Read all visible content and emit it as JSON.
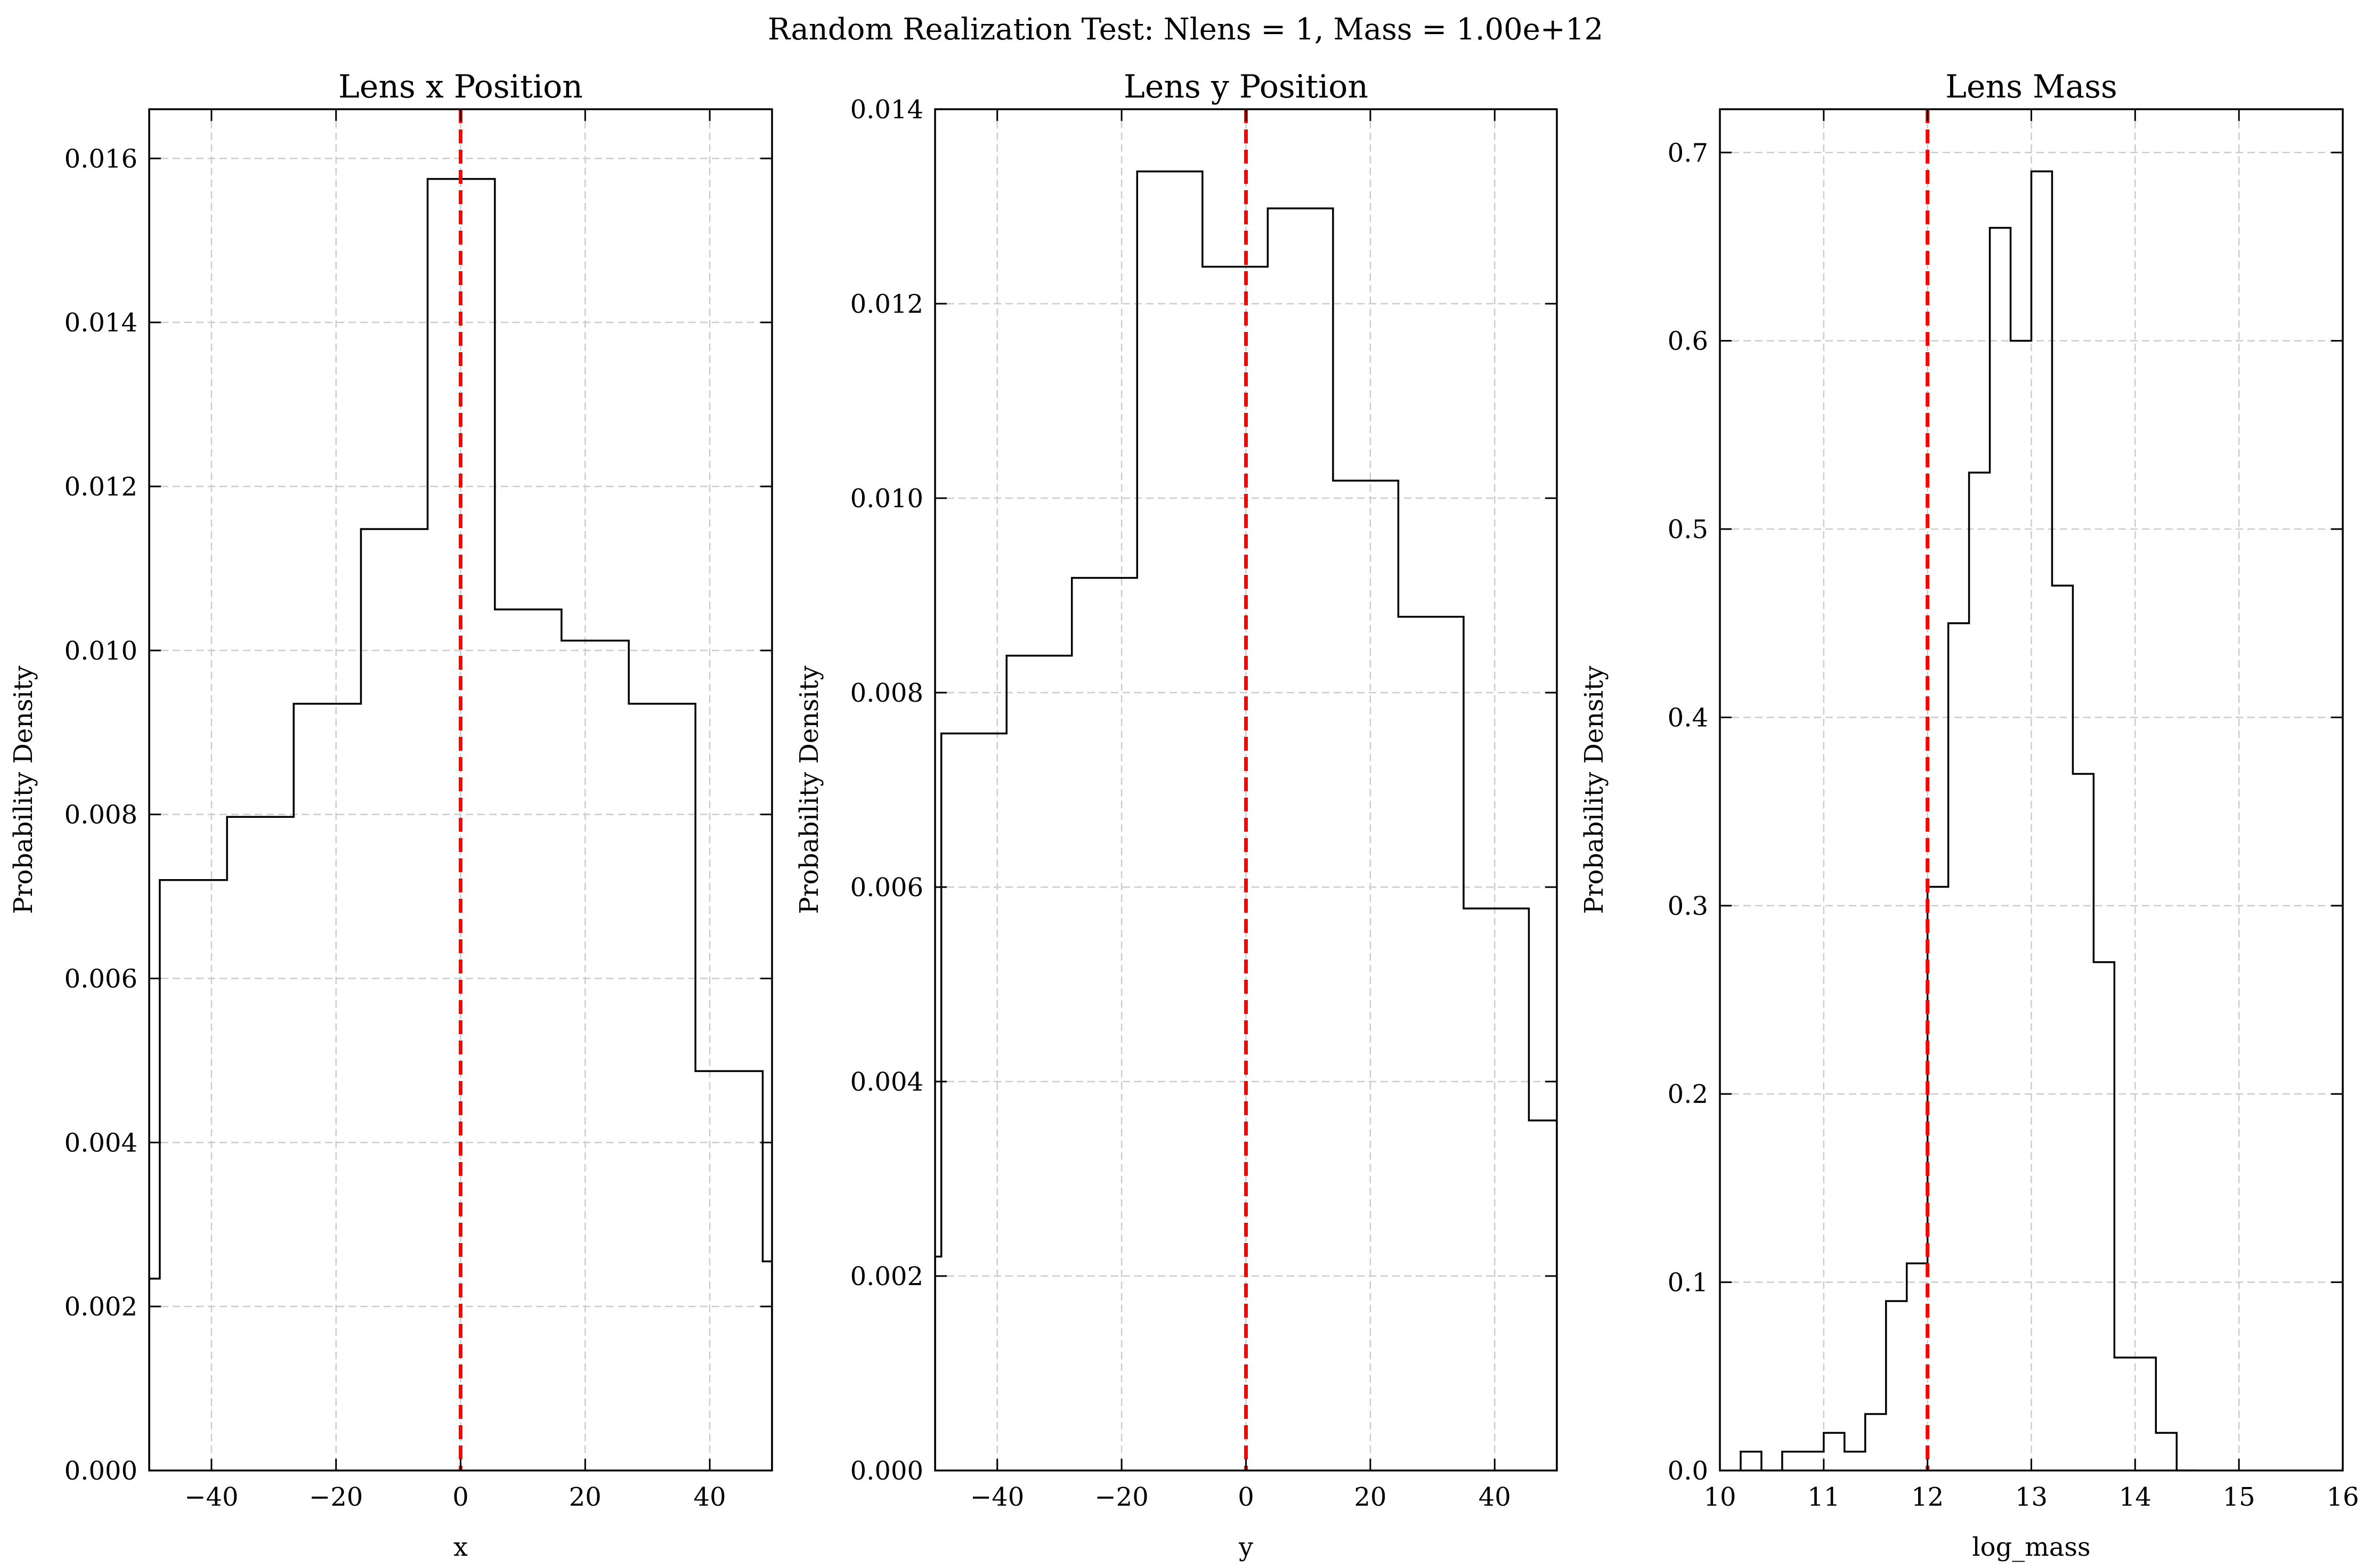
{
  "figure": {
    "suptitle": "Random Realization Test: Nlens = 1, Mass = 1.00e+12"
  },
  "style": {
    "hist_color": "#000000",
    "marker_color": "#ff0000",
    "grid_color": "#cccccc"
  },
  "chart_data": [
    {
      "type": "histogram",
      "title": "Lens x Position",
      "xlabel": "x",
      "ylabel": "Probability Density",
      "xlim": [
        -50,
        50
      ],
      "ylim": [
        0,
        0.0166
      ],
      "xticks": [
        -40,
        -20,
        0,
        20,
        40
      ],
      "xtick_labels": [
        "−40",
        "−20",
        "0",
        "20",
        "40"
      ],
      "yticks": [
        0,
        0.002,
        0.004,
        0.006,
        0.008,
        0.01,
        0.012,
        0.014,
        0.016
      ],
      "ytick_labels": [
        "0.000",
        "0.002",
        "0.004",
        "0.006",
        "0.008",
        "0.010",
        "0.012",
        "0.014",
        "0.016"
      ],
      "grid": true,
      "bin_edges": [
        -50,
        -48.3,
        -37.5,
        -26.8,
        -16.0,
        -5.3,
        5.5,
        16.2,
        27.0,
        37.7,
        48.5,
        50
      ],
      "values": [
        0.00234,
        0.0072,
        0.00797,
        0.00935,
        0.01148,
        0.01575,
        0.0105,
        0.01012,
        0.00935,
        0.00487,
        0.00255
      ],
      "marker_line": {
        "x": 0,
        "style": "dashed"
      }
    },
    {
      "type": "histogram",
      "title": "Lens y Position",
      "xlabel": "y",
      "ylabel": "Probability Density",
      "xlim": [
        -50,
        50
      ],
      "ylim": [
        0,
        0.014
      ],
      "xticks": [
        -40,
        -20,
        0,
        20,
        40
      ],
      "xtick_labels": [
        "−40",
        "−20",
        "0",
        "20",
        "40"
      ],
      "yticks": [
        0,
        0.002,
        0.004,
        0.006,
        0.008,
        0.01,
        0.012,
        0.014
      ],
      "ytick_labels": [
        "0.000",
        "0.002",
        "0.004",
        "0.006",
        "0.008",
        "0.010",
        "0.012",
        "0.014"
      ],
      "grid": true,
      "bin_edges": [
        -50,
        -49.0,
        -38.5,
        -28.0,
        -17.5,
        -7.0,
        3.5,
        14.0,
        24.5,
        35.0,
        45.5,
        50
      ],
      "values": [
        0.0022,
        0.00758,
        0.00838,
        0.00918,
        0.01336,
        0.01238,
        0.01298,
        0.01018,
        0.00878,
        0.00578,
        0.0036
      ],
      "marker_line": {
        "x": 0,
        "style": "dashed"
      }
    },
    {
      "type": "histogram",
      "title": "Lens Mass",
      "xlabel": "log_mass",
      "ylabel": "Probability Density",
      "xlim": [
        10,
        16
      ],
      "ylim": [
        0,
        0.723
      ],
      "xticks": [
        10,
        11,
        12,
        13,
        14,
        15,
        16
      ],
      "xtick_labels": [
        "10",
        "11",
        "12",
        "13",
        "14",
        "15",
        "16"
      ],
      "yticks": [
        0,
        0.1,
        0.2,
        0.3,
        0.4,
        0.5,
        0.6,
        0.7
      ],
      "ytick_labels": [
        "0.0",
        "0.1",
        "0.2",
        "0.3",
        "0.4",
        "0.5",
        "0.6",
        "0.7"
      ],
      "grid": true,
      "bin_edges": [
        10.2,
        10.4,
        10.6,
        10.8,
        11.0,
        11.2,
        11.4,
        11.6,
        11.8,
        12.0,
        12.2,
        12.4,
        12.6,
        12.8,
        13.0,
        13.2,
        13.4,
        13.6,
        13.8,
        14.0,
        14.2,
        14.4,
        14.6
      ],
      "values": [
        0.01,
        0.0,
        0.01,
        0.01,
        0.02,
        0.01,
        0.03,
        0.09,
        0.11,
        0.31,
        0.45,
        0.53,
        0.66,
        0.6,
        0.69,
        0.47,
        0.37,
        0.27,
        0.06,
        0.06,
        0.02,
        0.0
      ],
      "marker_line": {
        "x": 12,
        "style": "dashed"
      }
    }
  ]
}
